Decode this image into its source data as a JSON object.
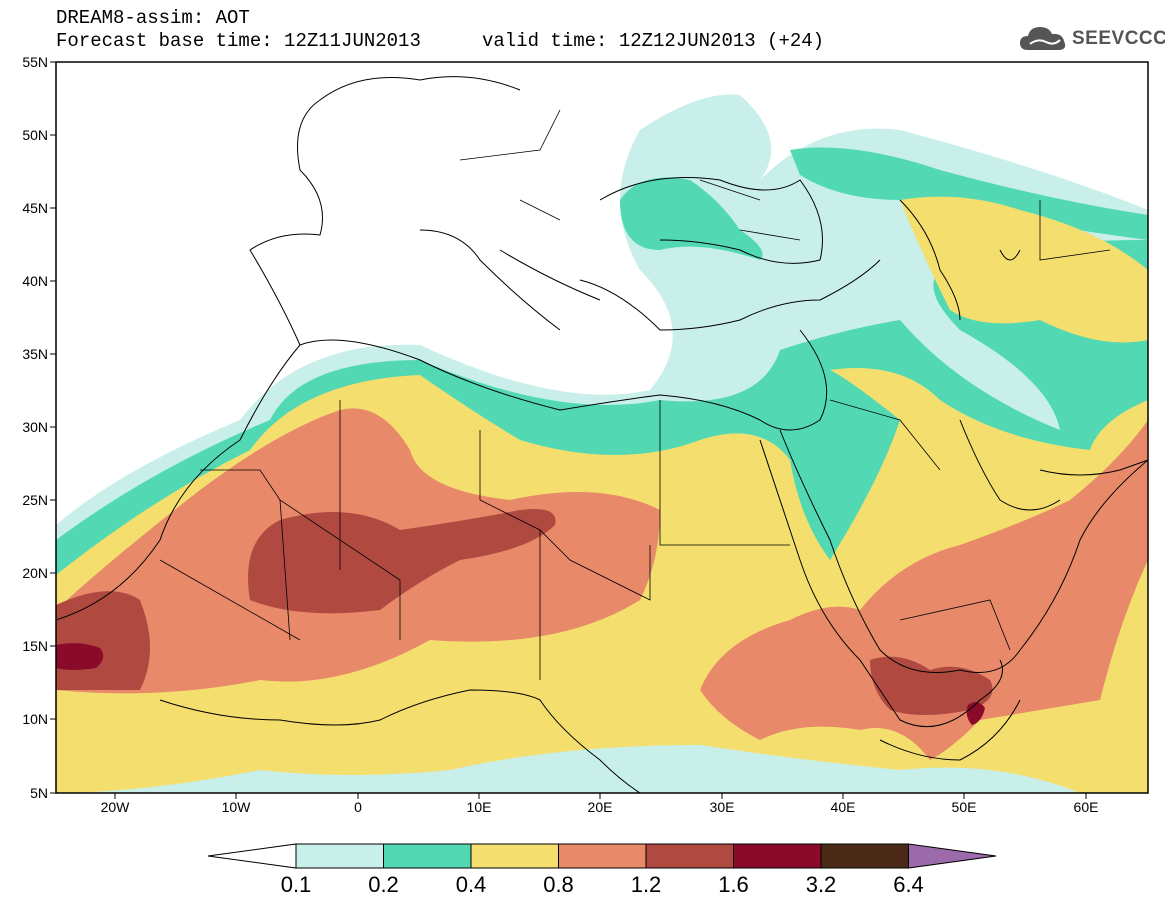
{
  "header": {
    "line1": "DREAM8-assim: AOT",
    "line2": "Forecast base time: 12Z11JUN2013",
    "valid": "valid time: 12Z12JUN2013 (+24)",
    "logo_text": "SEEVCCC"
  },
  "axes": {
    "lat_labels": [
      "55N",
      "50N",
      "45N",
      "40N",
      "35N",
      "30N",
      "25N",
      "20N",
      "15N",
      "10N",
      "5N"
    ],
    "lon_labels": [
      "20W",
      "10W",
      "0",
      "10E",
      "20E",
      "30E",
      "40E",
      "50E",
      "60E"
    ]
  },
  "colorbar": {
    "labels": [
      "0.1",
      "0.2",
      "0.4",
      "0.8",
      "1.2",
      "1.6",
      "3.2",
      "6.4"
    ],
    "colors": [
      "#ffffff",
      "#c8efe9",
      "#52d9b4",
      "#f4df6e",
      "#e8896a",
      "#b04a40",
      "#8a0a2a",
      "#4a2a16",
      "#9a6aaa"
    ]
  }
}
